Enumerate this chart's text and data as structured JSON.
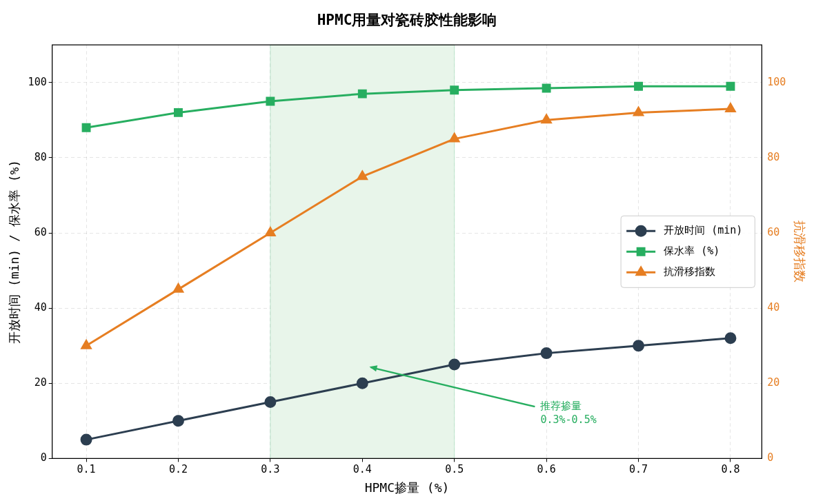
{
  "chart_data": {
    "type": "line",
    "title": "HPMC用量对瓷砖胶性能影响",
    "xlabel": "HPMC掺量 (%)",
    "ylabel": "开放时间 (min) / 保水率 (%)",
    "y2label": "抗滑移指数",
    "x": [
      0.1,
      0.2,
      0.3,
      0.4,
      0.5,
      0.6,
      0.7,
      0.8
    ],
    "series": [
      {
        "name": "开放时间 (min)",
        "color": "#2c3e50",
        "marker": "circle",
        "values": [
          5,
          10,
          15,
          20,
          25,
          28,
          30,
          32
        ]
      },
      {
        "name": "保水率 (%)",
        "color": "#27ae60",
        "marker": "square",
        "values": [
          88,
          92,
          95,
          97,
          98,
          98.5,
          99,
          99
        ]
      },
      {
        "name": "抗滑移指数",
        "color": "#e67e22",
        "marker": "triangle",
        "axis": "y2",
        "values": [
          30,
          45,
          60,
          75,
          85,
          90,
          92,
          93
        ]
      }
    ],
    "xlim": [
      0.063,
      0.834
    ],
    "xticks": [
      0.1,
      0.2,
      0.3,
      0.4,
      0.5,
      0.6,
      0.7,
      0.8
    ],
    "ylim": [
      0,
      110
    ],
    "yticks": [
      0,
      20,
      40,
      60,
      80,
      100
    ],
    "y2lim": [
      0,
      110
    ],
    "y2ticks": [
      0,
      20,
      40,
      60,
      80,
      100
    ],
    "bands": [
      {
        "axis": "x",
        "from": 0.3,
        "to": 0.5,
        "color": "#e8f5ea"
      }
    ],
    "annotations": [
      "推荐掺量\n0.3%-0.5%"
    ],
    "grid": true,
    "legend": "right"
  }
}
